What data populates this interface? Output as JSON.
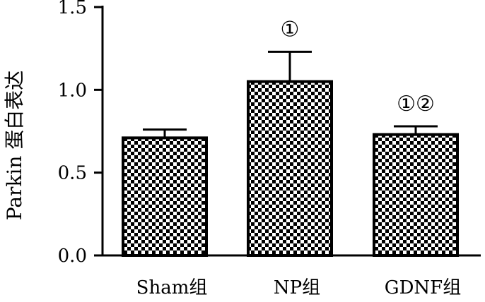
{
  "chart_data": {
    "type": "bar",
    "ylabel": "Parkin 蛋白表达",
    "xlabel": "",
    "ylim": [
      0,
      1.5
    ],
    "yticks": [
      "0.0",
      "0.5",
      "1.0",
      "1.5"
    ],
    "ytick_values": [
      0.0,
      0.5,
      1.0,
      1.5
    ],
    "categories": [
      "Sham组",
      "NP组",
      "GDNF组"
    ],
    "values": [
      0.71,
      1.05,
      0.73
    ],
    "error": [
      0.05,
      0.18,
      0.05
    ],
    "annotations": [
      "",
      "①",
      "①②"
    ],
    "bar_pattern": "checkerboard",
    "grid": false,
    "legend": "none"
  }
}
